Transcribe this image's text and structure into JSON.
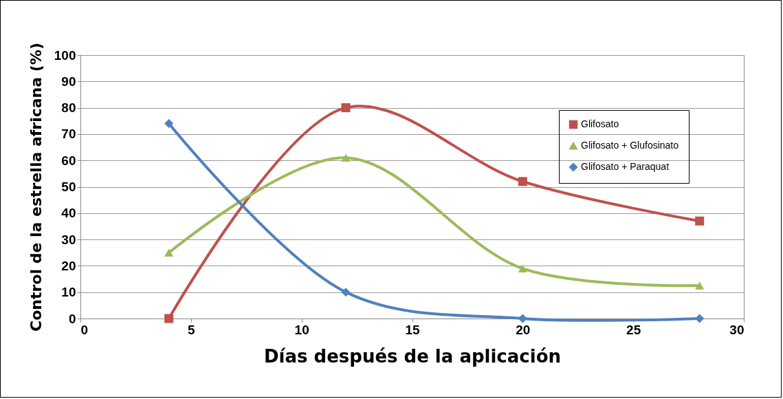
{
  "chart_data": {
    "type": "line",
    "xlabel": "Días después de la aplicación",
    "ylabel": "Control de la estrella africana (%)",
    "x": [
      4,
      12,
      20,
      28
    ],
    "series": [
      {
        "name": "Glifosato",
        "color": "#c0504d",
        "marker": "square",
        "values": [
          0,
          80,
          52,
          37
        ]
      },
      {
        "name": "Glifosato + Glufosinato",
        "color": "#9bbb59",
        "marker": "triangle",
        "values": [
          25,
          61,
          19,
          12.5
        ]
      },
      {
        "name": "Glifosato + Paraquat",
        "color": "#4f81bd",
        "marker": "diamond",
        "values": [
          74,
          10,
          0,
          0
        ]
      }
    ],
    "xlim": [
      0,
      30
    ],
    "xticks": [
      0,
      5,
      10,
      15,
      20,
      25,
      30
    ],
    "ylim": [
      0,
      100
    ],
    "yticks": [
      0,
      10,
      20,
      30,
      40,
      50,
      60,
      70,
      80,
      90,
      100
    ],
    "grid": "y",
    "legend": "top right",
    "line_style": "solid"
  }
}
